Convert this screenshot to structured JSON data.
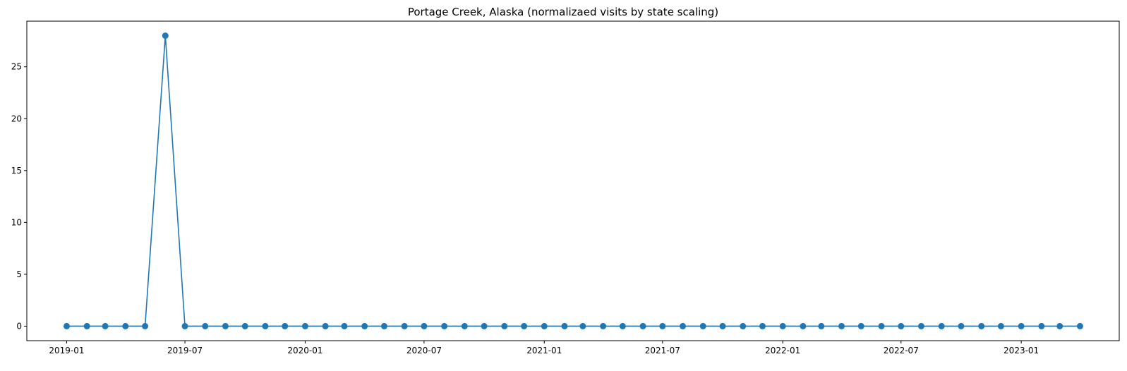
{
  "chart_data": {
    "type": "line",
    "title": "Portage Creek, Alaska (normalizaed visits by state scaling)",
    "xlabel": "",
    "ylabel": "",
    "x_tick_labels": [
      "2019-01",
      "2019-07",
      "2020-01",
      "2020-07",
      "2021-01",
      "2021-07",
      "2022-01",
      "2022-07",
      "2023-01"
    ],
    "y_tick_labels": [
      "0",
      "5",
      "10",
      "15",
      "20",
      "25"
    ],
    "y_ticks": [
      0,
      5,
      10,
      15,
      20,
      25
    ],
    "ylim": [
      -1.4,
      29.4
    ],
    "xlim": [
      "2018-11-01",
      "2023-05-31"
    ],
    "grid": false,
    "series": [
      {
        "color": "#1f77b4",
        "marker": "circle",
        "x": [
          "2019-01-01",
          "2019-02-01",
          "2019-03-01",
          "2019-04-01",
          "2019-05-01",
          "2019-06-01",
          "2019-07-01",
          "2019-08-01",
          "2019-09-01",
          "2019-10-01",
          "2019-11-01",
          "2019-12-01",
          "2020-01-01",
          "2020-02-01",
          "2020-03-01",
          "2020-04-01",
          "2020-05-01",
          "2020-06-01",
          "2020-07-01",
          "2020-08-01",
          "2020-09-01",
          "2020-10-01",
          "2020-11-01",
          "2020-12-01",
          "2021-01-01",
          "2021-02-01",
          "2021-03-01",
          "2021-04-01",
          "2021-05-01",
          "2021-06-01",
          "2021-07-01",
          "2021-08-01",
          "2021-09-01",
          "2021-10-01",
          "2021-11-01",
          "2021-12-01",
          "2022-01-01",
          "2022-02-01",
          "2022-03-01",
          "2022-04-01",
          "2022-05-01",
          "2022-06-01",
          "2022-07-01",
          "2022-08-01",
          "2022-09-01",
          "2022-10-01",
          "2022-11-01",
          "2022-12-01",
          "2023-01-01",
          "2023-02-01",
          "2023-03-01",
          "2023-04-01"
        ],
        "values": [
          0,
          0,
          0,
          0,
          0,
          28,
          0,
          0,
          0,
          0,
          0,
          0,
          0,
          0,
          0,
          0,
          0,
          0,
          0,
          0,
          0,
          0,
          0,
          0,
          0,
          0,
          0,
          0,
          0,
          0,
          0,
          0,
          0,
          0,
          0,
          0,
          0,
          0,
          0,
          0,
          0,
          0,
          0,
          0,
          0,
          0,
          0,
          0,
          0,
          0,
          0,
          0
        ]
      }
    ]
  }
}
